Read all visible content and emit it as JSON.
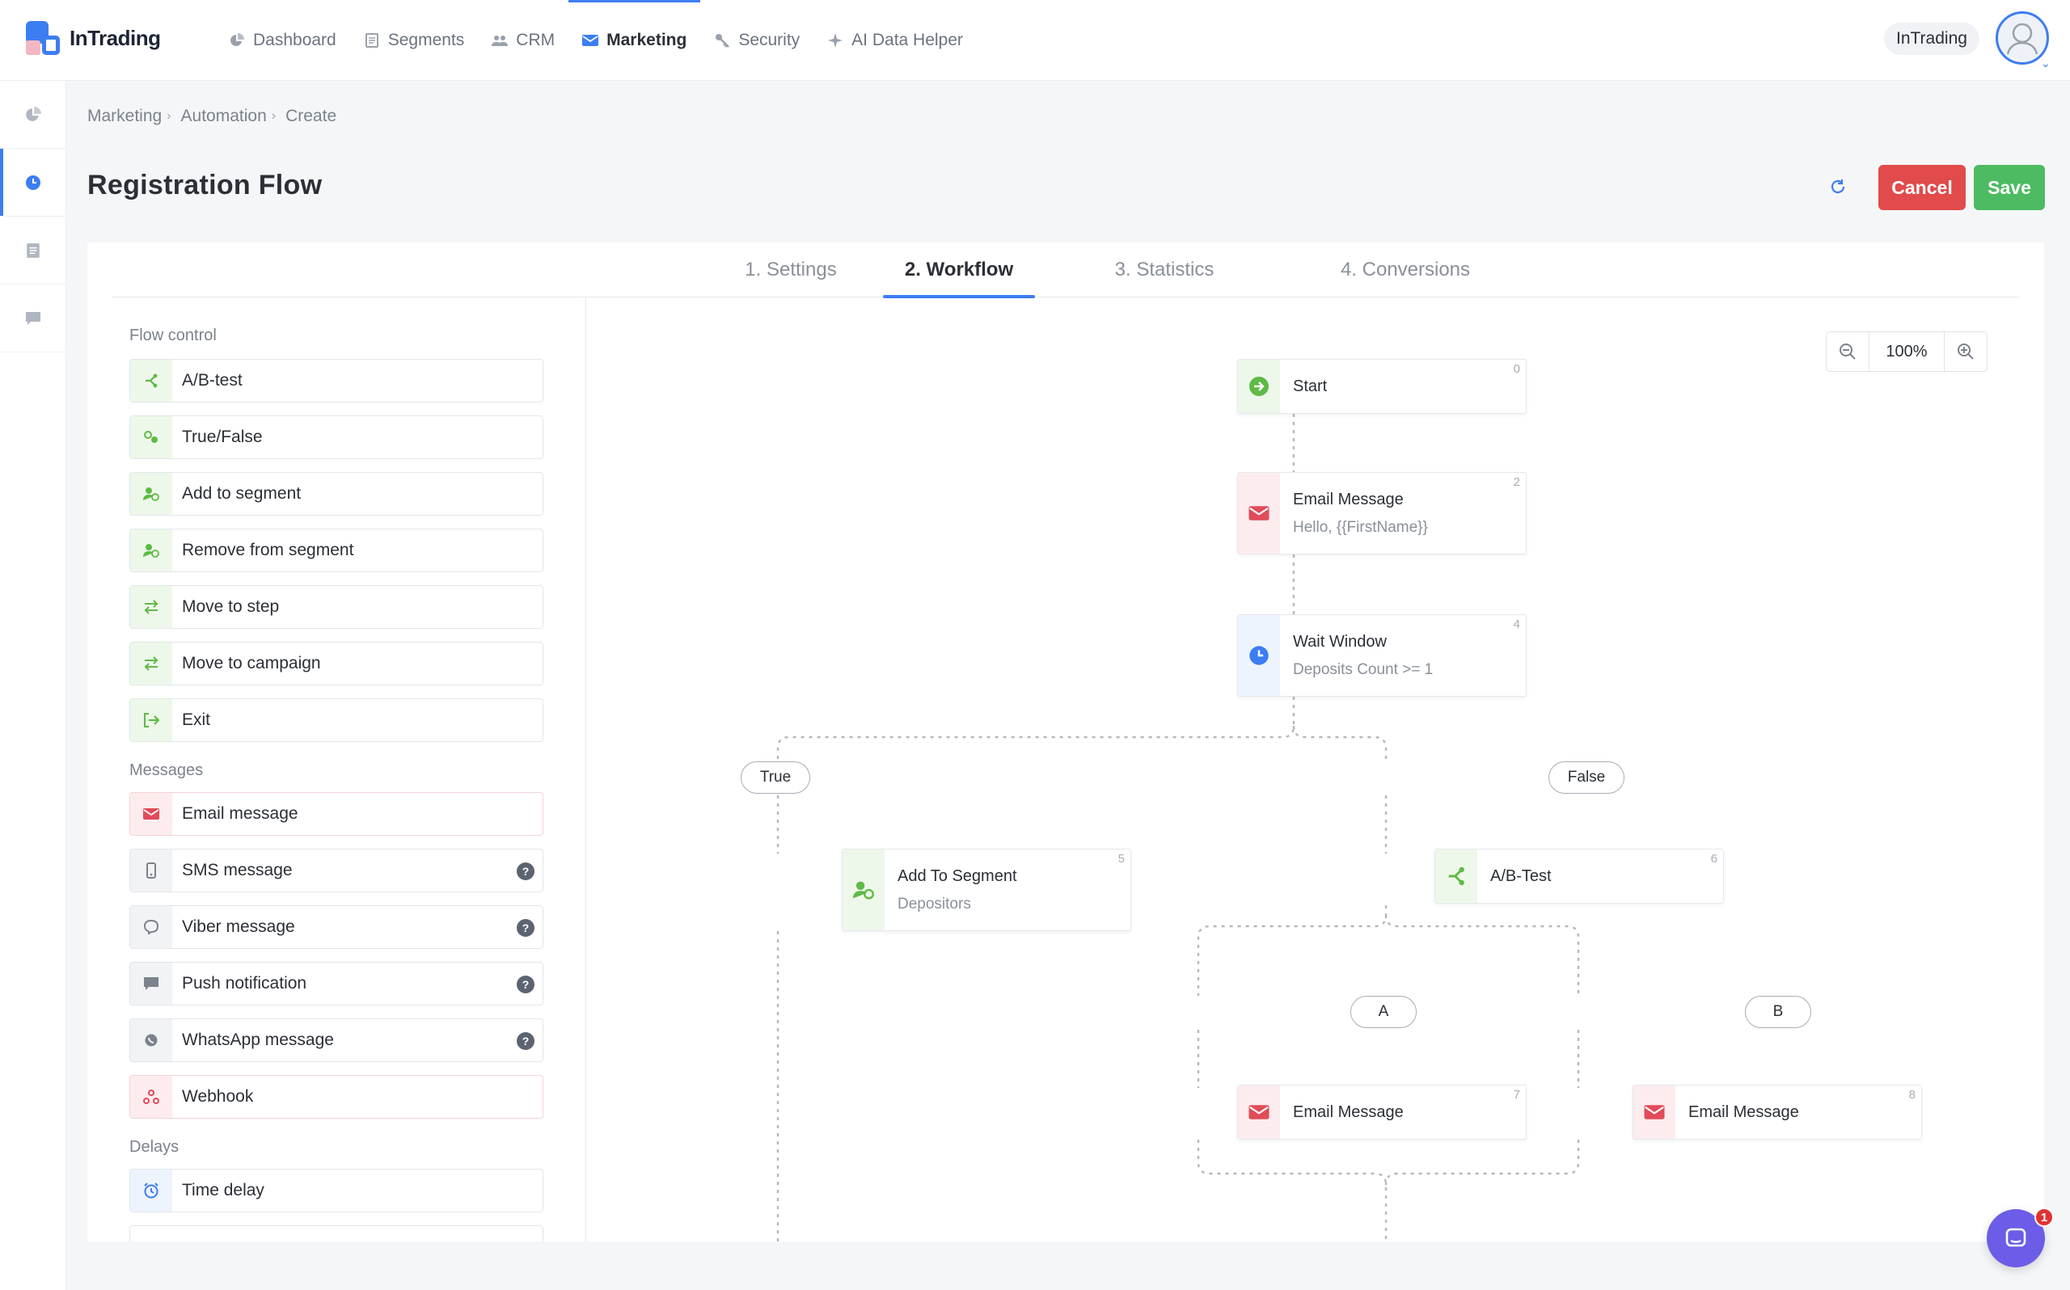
{
  "app": {
    "name": "InTrading"
  },
  "nav": {
    "items": [
      {
        "label": "Dashboard",
        "icon": "pie-chart-icon"
      },
      {
        "label": "Segments",
        "icon": "document-icon"
      },
      {
        "label": "CRM",
        "icon": "users-icon"
      },
      {
        "label": "Marketing",
        "icon": "mail-icon",
        "active": true
      },
      {
        "label": "Security",
        "icon": "key-icon"
      },
      {
        "label": "AI Data Helper",
        "icon": "sparkle-icon"
      }
    ],
    "org": "InTrading"
  },
  "breadcrumb": {
    "marketing": "Marketing",
    "automation": "Automation",
    "create": "Create"
  },
  "page": {
    "title": "Registration Flow",
    "cancel_label": "Cancel",
    "save_label": "Save"
  },
  "tabs": [
    "1. Settings",
    "2. Workflow",
    "3. Statistics",
    "4. Conversions"
  ],
  "palette": {
    "flow_title": "Flow control",
    "flow": [
      "A/B-test",
      "True/False",
      "Add to segment",
      "Remove from segment",
      "Move to step",
      "Move to campaign",
      "Exit"
    ],
    "messages_title": "Messages",
    "messages": [
      "Email message",
      "SMS message",
      "Viber message",
      "Push notification",
      "WhatsApp message",
      "Webhook"
    ],
    "delays_title": "Delays",
    "delays": [
      "Time delay"
    ]
  },
  "zoom": {
    "value": "100%"
  },
  "workflow": {
    "start": {
      "title": "Start",
      "num": "0"
    },
    "email1": {
      "title": "Email Message",
      "sub": "Hello, {{FirstName}}",
      "num": "2"
    },
    "wait": {
      "title": "Wait Window",
      "sub": "Deposits Count >= 1",
      "num": "4"
    },
    "true_label": "True",
    "false_label": "False",
    "add_segment": {
      "title": "Add To Segment",
      "sub": "Depositors",
      "num": "5"
    },
    "ab_test": {
      "title": "A/B-Test",
      "num": "6"
    },
    "a_label": "A",
    "b_label": "B",
    "email_a": {
      "title": "Email Message",
      "num": "7"
    },
    "email_b": {
      "title": "Email Message",
      "num": "8"
    }
  },
  "chat": {
    "badge": "1"
  },
  "colors": {
    "accent": "#3d7df2",
    "cancel": "#e14b4b",
    "save": "#4cbb61",
    "flow_green": "#5fba46",
    "message_red": "#e14b5a"
  }
}
